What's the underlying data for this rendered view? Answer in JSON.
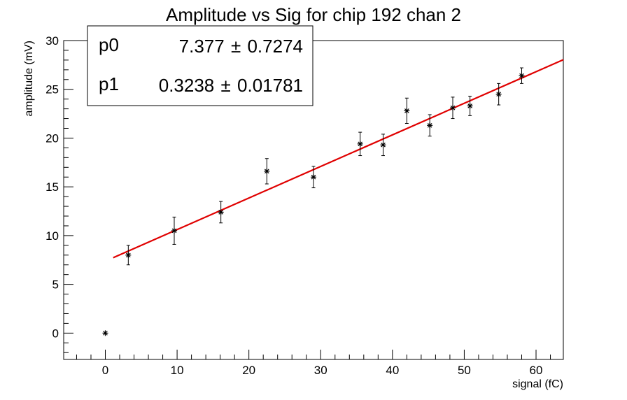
{
  "chart_data": {
    "type": "scatter",
    "title": "Amplitude vs Sig for chip 192 chan 2",
    "xlabel": "signal (fC)",
    "ylabel": "amplitude (mV)",
    "xlim": [
      -5.8,
      63.8
    ],
    "ylim": [
      -2.7,
      30
    ],
    "x_ticks": [
      0,
      10,
      20,
      30,
      40,
      50,
      60
    ],
    "y_ticks": [
      0,
      5,
      10,
      15,
      20,
      25,
      30
    ],
    "x_tick_labels": [
      "0",
      "10",
      "20",
      "30",
      "40",
      "50",
      "60"
    ],
    "y_tick_labels": [
      "0",
      "5",
      "10",
      "15",
      "20",
      "25",
      "30"
    ],
    "grid": false,
    "series": [
      {
        "marker": "asterisk",
        "color": "#000000",
        "points": [
          {
            "x": 0.0,
            "y": 0.0,
            "err": 0.0
          },
          {
            "x": 3.2,
            "y": 8.0,
            "err": 1.0
          },
          {
            "x": 9.6,
            "y": 10.5,
            "err": 1.4
          },
          {
            "x": 16.1,
            "y": 12.4,
            "err": 1.1
          },
          {
            "x": 22.5,
            "y": 16.6,
            "err": 1.3
          },
          {
            "x": 29.0,
            "y": 16.0,
            "err": 1.1
          },
          {
            "x": 35.5,
            "y": 19.4,
            "err": 1.2
          },
          {
            "x": 38.7,
            "y": 19.3,
            "err": 1.1
          },
          {
            "x": 42.0,
            "y": 22.8,
            "err": 1.3
          },
          {
            "x": 45.2,
            "y": 21.3,
            "err": 1.1
          },
          {
            "x": 48.4,
            "y": 23.1,
            "err": 1.1
          },
          {
            "x": 50.8,
            "y": 23.3,
            "err": 1.0
          },
          {
            "x": 54.8,
            "y": 24.5,
            "err": 1.1
          },
          {
            "x": 58.0,
            "y": 26.4,
            "err": 0.8
          }
        ]
      }
    ],
    "fit": {
      "function": "pol1",
      "color": "#e00000",
      "p0": 7.377,
      "p1": 0.3238,
      "x_range": [
        1.1,
        63.8
      ]
    },
    "stats_box": {
      "position": "top-left",
      "rows": [
        {
          "name": "p0",
          "value": "7.377",
          "pm": "±",
          "error": "0.7274"
        },
        {
          "name": "p1",
          "value": "0.3238",
          "pm": "±",
          "error": "0.01781"
        }
      ]
    }
  }
}
